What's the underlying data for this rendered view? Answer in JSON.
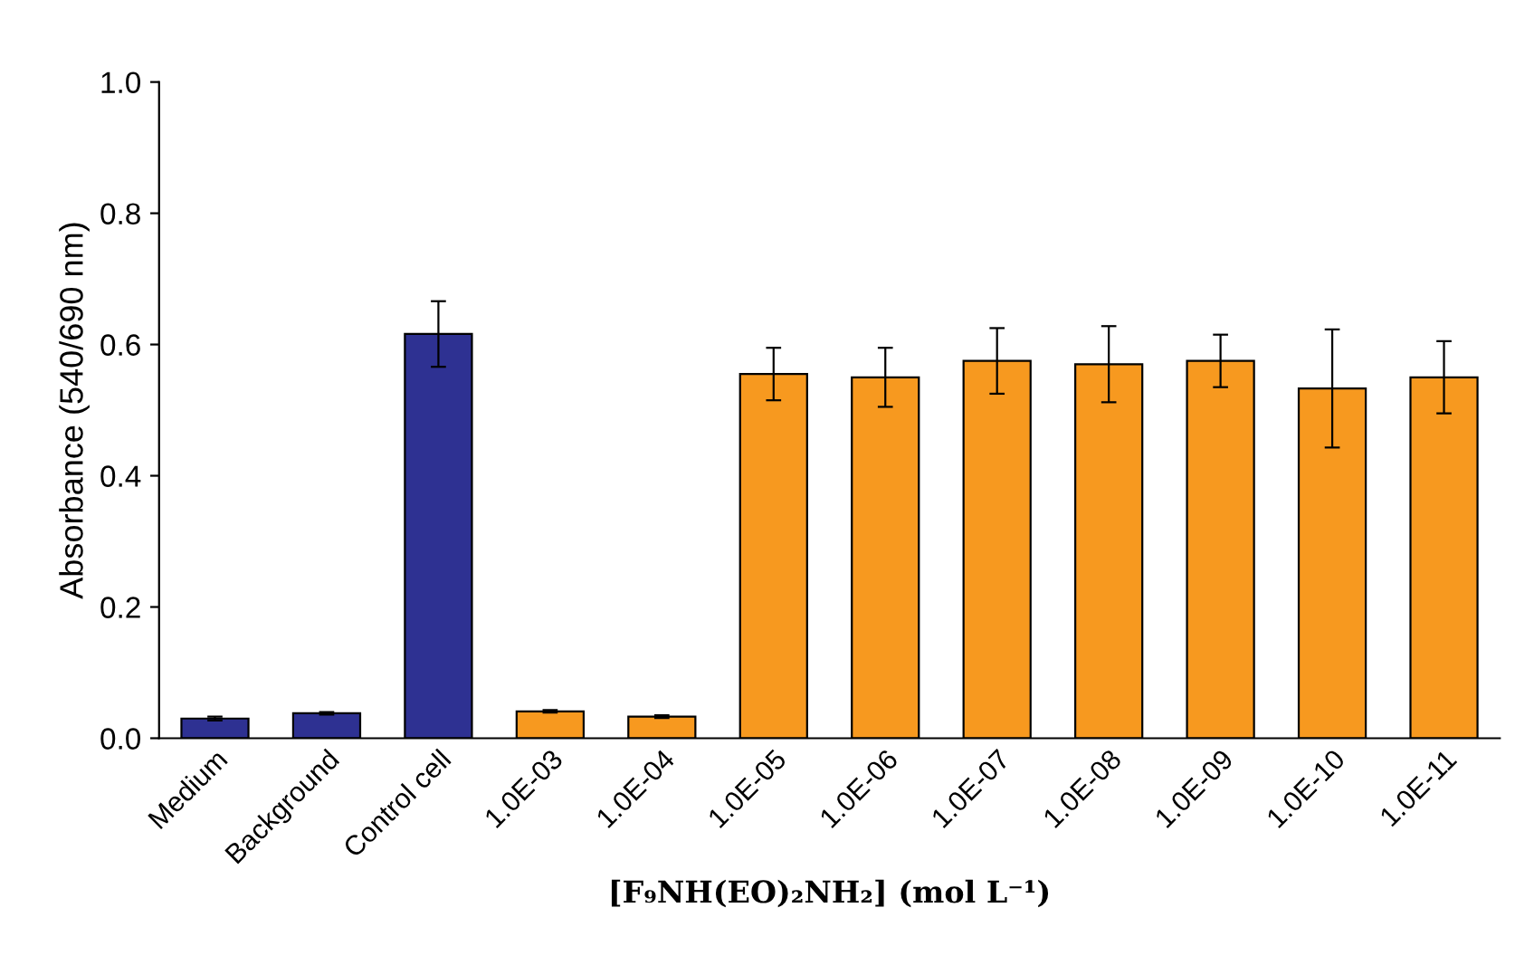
{
  "chart_data": {
    "type": "bar",
    "xlabel": "[F₉NH(EO)₂NH₂] (mol L⁻¹)",
    "ylabel": "Absorbance (540/690 nm)",
    "categories": [
      "Medium",
      "Background",
      "Control cell",
      "1.0E-03",
      "1.0E-04",
      "1.0E-05",
      "1.0E-06",
      "1.0E-07",
      "1.0E-08",
      "1.0E-09",
      "1.0E-10",
      "1.0E-11"
    ],
    "values": [
      0.03,
      0.038,
      0.616,
      0.041,
      0.033,
      0.555,
      0.55,
      0.575,
      0.57,
      0.575,
      0.533,
      0.55
    ],
    "errors": [
      0.003,
      0.002,
      0.05,
      0.002,
      0.002,
      0.04,
      0.045,
      0.05,
      0.058,
      0.04,
      0.09,
      0.055
    ],
    "colors": [
      "#2e3192",
      "#2e3192",
      "#2e3192",
      "#f7991f",
      "#f7991f",
      "#f7991f",
      "#f7991f",
      "#f7991f",
      "#f7991f",
      "#f7991f",
      "#f7991f",
      "#f7991f"
    ],
    "ylim": [
      0,
      1.0
    ],
    "yticks": [
      {
        "value": 0,
        "label": "0.0"
      },
      {
        "value": 0.2,
        "label": "0.2"
      },
      {
        "value": 0.4,
        "label": "0.4"
      },
      {
        "value": 0.6,
        "label": "0.6"
      },
      {
        "value": 0.8,
        "label": "0.8"
      },
      {
        "value": 1.0,
        "label": "1.0"
      }
    ],
    "grid": false,
    "legend": false
  }
}
